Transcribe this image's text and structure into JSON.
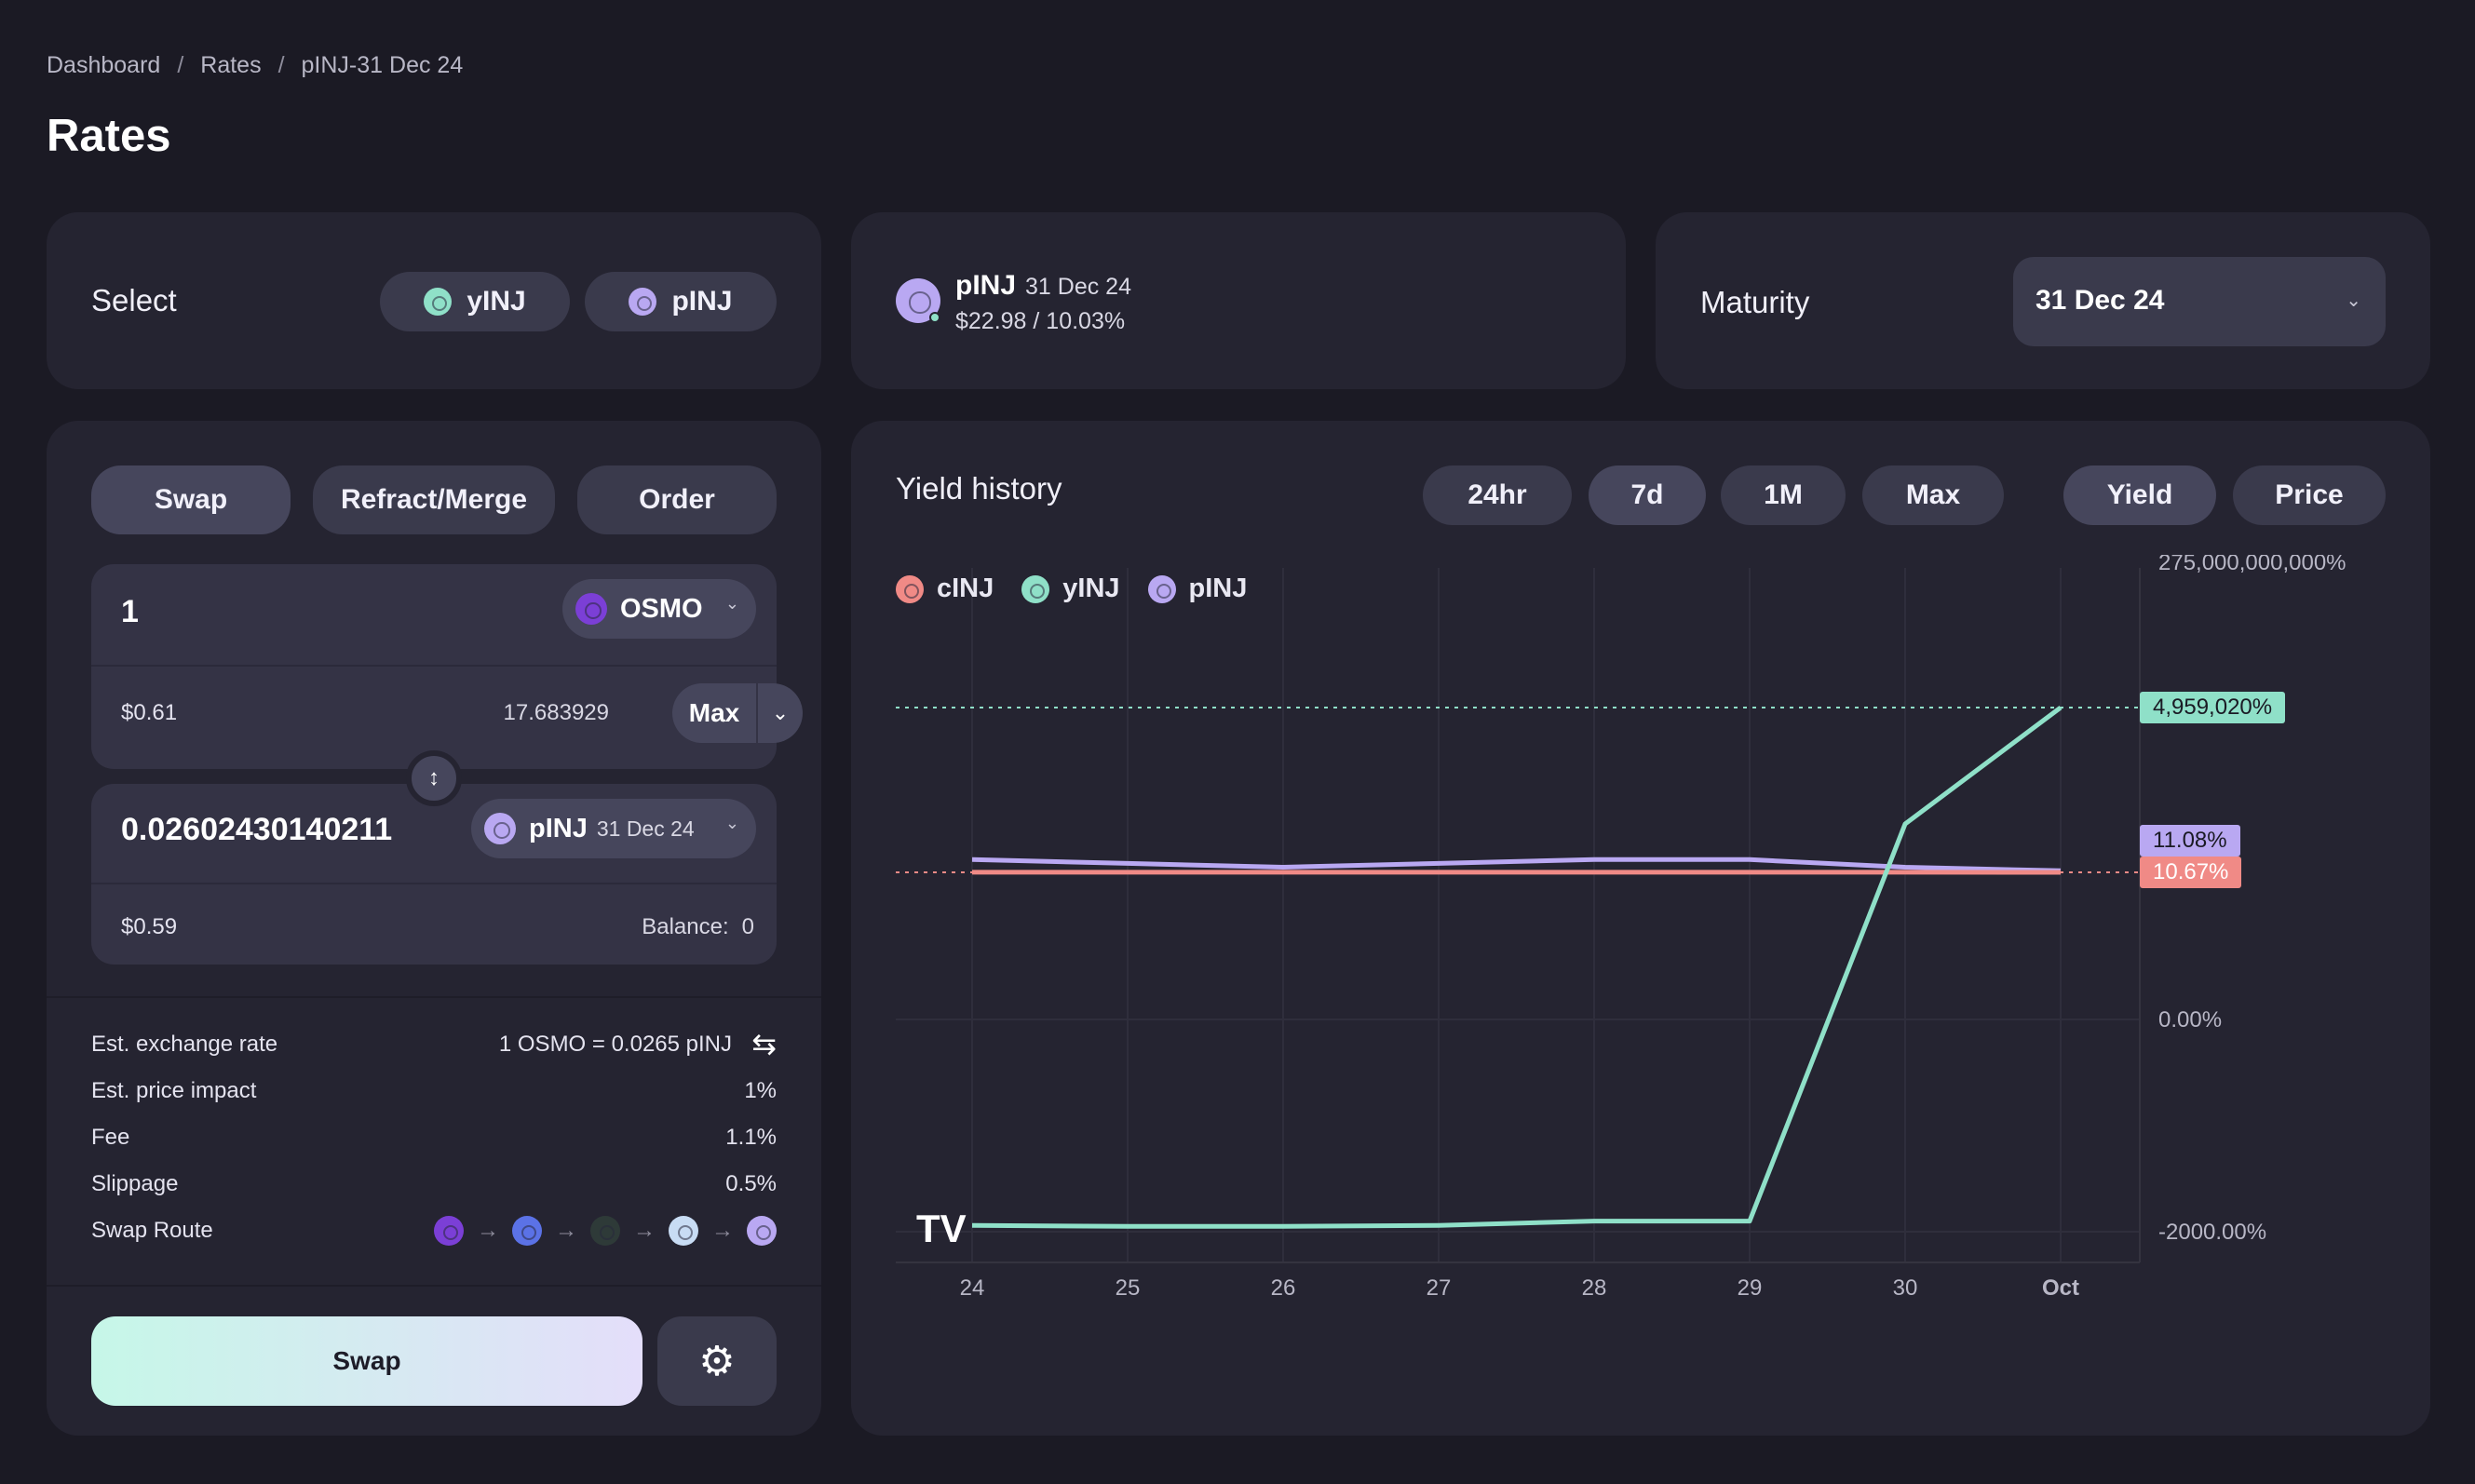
{
  "breadcrumb": [
    "Dashboard",
    "Rates",
    "pINJ-31 Dec 24"
  ],
  "page_title": "Rates",
  "select": {
    "label": "Select",
    "options": [
      "yINJ",
      "pINJ"
    ]
  },
  "asset": {
    "name": "pINJ",
    "date": "31 Dec 24",
    "price_yield": "$22.98 / 10.03%"
  },
  "maturity": {
    "label": "Maturity",
    "value": "31 Dec 24"
  },
  "swap_panel": {
    "tabs": [
      "Swap",
      "Refract/Merge",
      "Order"
    ],
    "from": {
      "amount": "1",
      "token": "OSMO",
      "usd": "$0.61",
      "balance": "17.683929",
      "max_label": "Max"
    },
    "to": {
      "amount": "0.02602430140211",
      "token": "pINJ",
      "token_date": "31 Dec 24",
      "usd": "$0.59",
      "balance_label": "Balance:",
      "balance": "0"
    },
    "details": [
      {
        "label": "Est. exchange rate",
        "value": "1 OSMO = 0.0265 pINJ"
      },
      {
        "label": "Est. price impact",
        "value": "1%"
      },
      {
        "label": "Fee",
        "value": "1.1%"
      },
      {
        "label": "Slippage",
        "value": "0.5%"
      },
      {
        "label": "Swap Route",
        "value": ""
      }
    ],
    "swap_button": "Swap"
  },
  "chart_panel": {
    "title": "Yield history",
    "ranges": [
      "24hr",
      "7d",
      "1M",
      "Max"
    ],
    "modes": [
      "Yield",
      "Price"
    ]
  },
  "colors": {
    "cINJ": "#f08a86",
    "yINJ": "#8fe0c8",
    "pINJ": "#b9a8f2",
    "accent_bg": "#252431"
  },
  "chart_data": {
    "type": "line",
    "legend": [
      "cINJ",
      "yINJ",
      "pINJ"
    ],
    "legend_position": "top-left",
    "x": [
      "24",
      "25",
      "26",
      "27",
      "28",
      "29",
      "30",
      "Oct"
    ],
    "y_ticks": [
      "275,000,000,000%",
      "0.00%",
      "-2000.00%"
    ],
    "series": [
      {
        "name": "yINJ",
        "values": [
          -1940,
          -1950,
          -1950,
          -1940,
          -1900,
          -1900,
          2400,
          4959020
        ]
      },
      {
        "name": "pINJ",
        "values": [
          14,
          13,
          12,
          13,
          14,
          14,
          12,
          11.08
        ]
      },
      {
        "name": "cINJ",
        "values": [
          10.7,
          10.7,
          10.7,
          10.7,
          10.7,
          10.7,
          10.7,
          10.67
        ]
      }
    ],
    "labels": [
      "4,959,020%",
      "11.08%",
      "10.67%"
    ],
    "grid": true
  }
}
